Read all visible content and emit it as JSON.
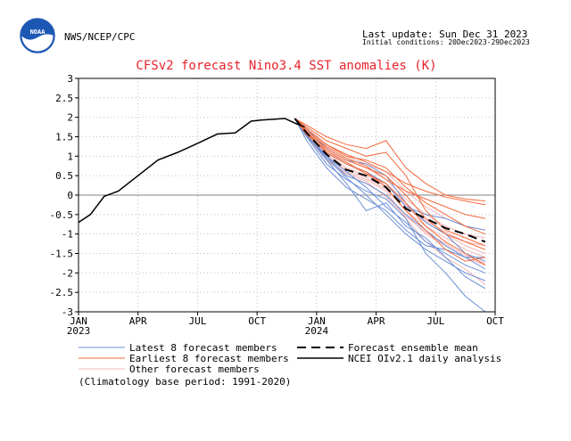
{
  "header": {
    "org": "NWS/NCEP/CPC",
    "logo_text": "NOAA",
    "last_update": "Last update: Sun Dec 31 2023",
    "initial_conditions": "Initial conditions: 20Dec2023-29Dec2023"
  },
  "colors": {
    "title": "#e8222b",
    "latest": "#6b8fd6",
    "earliest": "#f26a3d",
    "other": "#f4b4b4",
    "ensemble_mean": "#000000",
    "analysis": "#000000",
    "zero_line": "#808080",
    "grid": "#bfbfbf",
    "logo_blue": "#1d57b4"
  },
  "legend": {
    "latest": "Latest 8 forecast members",
    "earliest": "Earliest 8 forecast members",
    "other": "Other forecast members",
    "ensemble_mean": "Forecast ensemble mean",
    "analysis": "NCEI OIv2.1 daily analysis",
    "climatology": "(Climatology base period: 1991-2020)"
  },
  "chart_data": {
    "type": "line",
    "title": "CFSv2 forecast Nino3.4 SST anomalies (K)",
    "xlabel": "",
    "ylabel": "",
    "x_ticks": [
      {
        "label": "JAN",
        "sub": "2023",
        "month": 0
      },
      {
        "label": "APR",
        "sub": "",
        "month": 3
      },
      {
        "label": "JUL",
        "sub": "",
        "month": 6
      },
      {
        "label": "OCT",
        "sub": "",
        "month": 9
      },
      {
        "label": "JAN",
        "sub": "2024",
        "month": 12
      },
      {
        "label": "APR",
        "sub": "",
        "month": 15
      },
      {
        "label": "JUL",
        "sub": "",
        "month": 18
      },
      {
        "label": "OCT",
        "sub": "",
        "month": 21
      }
    ],
    "xlim_months": [
      0,
      21
    ],
    "y_ticks": [
      -3,
      -2.5,
      -2,
      -1.5,
      -1,
      -0.5,
      0,
      0.5,
      1,
      1.5,
      2,
      2.5,
      3
    ],
    "ylim": [
      -3,
      3
    ],
    "grid": true,
    "analysis": {
      "x": [
        0,
        0.6,
        1.3,
        2,
        3,
        4,
        5,
        6,
        7,
        7.9,
        8.7,
        9.2,
        9.9,
        10.4,
        10.9,
        11.4
      ],
      "y": [
        -0.7,
        -0.5,
        -0.03,
        0.1,
        0.5,
        0.9,
        1.1,
        1.33,
        1.57,
        1.6,
        1.9,
        1.93,
        1.95,
        1.97,
        1.85,
        1.75
      ]
    },
    "forecast_x": [
      10.9,
      11.5,
      12.5,
      13.5,
      14.5,
      15.5,
      16.5,
      17.5,
      18.5,
      19.5,
      20.5
    ],
    "ensemble_mean": [
      1.97,
      1.6,
      1.05,
      0.65,
      0.5,
      0.2,
      -0.35,
      -0.6,
      -0.85,
      -1.0,
      -1.2
    ],
    "members": [
      {
        "group": "latest",
        "y": [
          1.97,
          1.55,
          0.9,
          0.3,
          -0.4,
          -0.2,
          -0.8,
          -1.1,
          -1.6,
          -2.1,
          -2.4
        ]
      },
      {
        "group": "latest",
        "y": [
          1.97,
          1.5,
          0.8,
          0.4,
          0.1,
          -0.1,
          -0.6,
          -1.5,
          -2.0,
          -2.6,
          -3.0
        ]
      },
      {
        "group": "latest",
        "y": [
          1.97,
          1.7,
          1.2,
          0.9,
          0.8,
          0.5,
          -0.2,
          -0.7,
          -1.0,
          -1.5,
          -1.7
        ]
      },
      {
        "group": "latest",
        "y": [
          1.97,
          1.6,
          1.0,
          0.5,
          0.3,
          0.0,
          -0.5,
          -0.9,
          -1.3,
          -1.6,
          -1.9
        ]
      },
      {
        "group": "latest",
        "y": [
          1.97,
          1.4,
          0.7,
          0.2,
          -0.1,
          -0.4,
          -0.9,
          -1.3,
          -1.4,
          -1.6,
          -1.6
        ]
      },
      {
        "group": "latest",
        "y": [
          1.97,
          1.6,
          1.1,
          0.8,
          0.6,
          0.3,
          -0.3,
          -0.5,
          -0.6,
          -0.8,
          -0.9
        ]
      },
      {
        "group": "latest",
        "y": [
          1.97,
          1.5,
          1.0,
          0.6,
          0.2,
          -0.3,
          -0.7,
          -1.2,
          -1.5,
          -1.8,
          -2.0
        ]
      },
      {
        "group": "latest",
        "y": [
          1.97,
          1.55,
          0.95,
          0.45,
          0.0,
          -0.5,
          -1.0,
          -1.4,
          -1.7,
          -2.0,
          -2.2
        ]
      },
      {
        "group": "earliest",
        "y": [
          1.97,
          1.8,
          1.5,
          1.3,
          1.2,
          1.4,
          0.7,
          0.3,
          0.0,
          -0.1,
          -0.15
        ]
      },
      {
        "group": "earliest",
        "y": [
          1.97,
          1.7,
          1.3,
          1.0,
          0.9,
          0.7,
          0.2,
          -0.2,
          -0.5,
          -0.8,
          -1.0
        ]
      },
      {
        "group": "earliest",
        "y": [
          1.97,
          1.75,
          1.4,
          1.2,
          1.0,
          1.1,
          0.5,
          -0.4,
          -0.9,
          -1.1,
          -1.3
        ]
      },
      {
        "group": "earliest",
        "y": [
          1.97,
          1.6,
          1.2,
          0.9,
          0.7,
          0.5,
          0.0,
          -0.6,
          -1.0,
          -1.2,
          -1.4
        ]
      },
      {
        "group": "earliest",
        "y": [
          1.97,
          1.65,
          1.25,
          0.95,
          0.75,
          0.4,
          0.1,
          -0.1,
          -0.3,
          -0.5,
          -0.6
        ]
      },
      {
        "group": "earliest",
        "y": [
          1.97,
          1.7,
          1.3,
          1.05,
          0.85,
          0.6,
          0.3,
          0.1,
          -0.05,
          -0.15,
          -0.25
        ]
      },
      {
        "group": "earliest",
        "y": [
          1.97,
          1.6,
          1.1,
          0.8,
          0.6,
          0.2,
          -0.4,
          -0.9,
          -1.4,
          -1.7,
          -1.6
        ]
      },
      {
        "group": "earliest",
        "y": [
          1.97,
          1.55,
          1.15,
          0.85,
          0.55,
          0.3,
          -0.2,
          -0.8,
          -1.2,
          -1.5,
          -1.8
        ]
      },
      {
        "group": "other",
        "y": [
          1.97,
          1.6,
          1.1,
          0.7,
          0.5,
          0.3,
          -0.3,
          -0.7,
          -1.0,
          -1.3,
          -1.5
        ]
      },
      {
        "group": "other",
        "y": [
          1.97,
          1.5,
          0.9,
          0.5,
          0.3,
          0.0,
          -0.5,
          -1.0,
          -1.3,
          -1.6,
          -1.8
        ]
      },
      {
        "group": "other",
        "y": [
          1.97,
          1.65,
          1.2,
          0.9,
          0.7,
          0.4,
          -0.1,
          -0.5,
          -0.8,
          -1.0,
          -1.1
        ]
      },
      {
        "group": "other",
        "y": [
          1.97,
          1.55,
          1.0,
          0.6,
          0.4,
          0.1,
          -0.6,
          -1.2,
          -1.6,
          -1.9,
          -2.3
        ]
      },
      {
        "group": "other",
        "y": [
          1.97,
          1.7,
          1.3,
          1.0,
          0.8,
          0.6,
          0.1,
          -0.3,
          -0.6,
          -0.8,
          -0.9
        ]
      },
      {
        "group": "other",
        "y": [
          1.97,
          1.6,
          1.05,
          0.65,
          0.45,
          0.15,
          -0.4,
          -0.8,
          -1.1,
          -1.4,
          -1.6
        ]
      },
      {
        "group": "other",
        "y": [
          1.97,
          1.5,
          0.95,
          0.55,
          0.35,
          -0.05,
          -0.55,
          -0.95,
          -1.25,
          -1.55,
          -1.75
        ]
      },
      {
        "group": "other",
        "y": [
          1.97,
          1.65,
          1.15,
          0.8,
          0.55,
          0.25,
          -0.25,
          -0.65,
          -0.95,
          -1.2,
          -1.3
        ]
      }
    ]
  }
}
